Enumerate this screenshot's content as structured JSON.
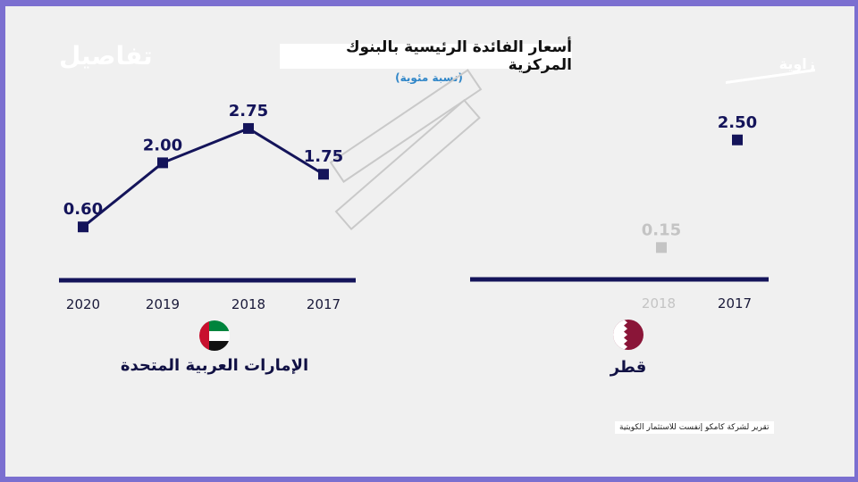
{
  "brand_text": "تفاصيل",
  "logo_text": "زاوية",
  "chart_data": [
    {
      "type": "line",
      "title": "أسعار الفائدة الرئيسية بالبنوك المركزية",
      "subtitle": "(نسبة مئوية)",
      "country": "الإمارات العربية المتحدة",
      "categories": [
        "2020",
        "2019",
        "2018",
        "2017"
      ],
      "values": [
        0.6,
        2.0,
        2.75,
        1.75
      ],
      "value_labels": [
        "0.60",
        "2.00",
        "2.75",
        "1.75"
      ],
      "ylim": [
        0,
        3.2
      ],
      "grid": false,
      "colors": {
        "series": "#14145a"
      }
    },
    {
      "type": "scatter",
      "country": "قطر",
      "categories": [
        "2018",
        "2017"
      ],
      "values": [
        0.15,
        2.5
      ],
      "value_labels": [
        "0.15",
        "2.50"
      ],
      "ylim": [
        0,
        3.2
      ],
      "grid": false,
      "colors": {
        "series": "#14145a",
        "faded": "#c4c4c4"
      }
    }
  ],
  "source": "تقرير لشركة كامكو إنفست للاستثمار الكويتية"
}
